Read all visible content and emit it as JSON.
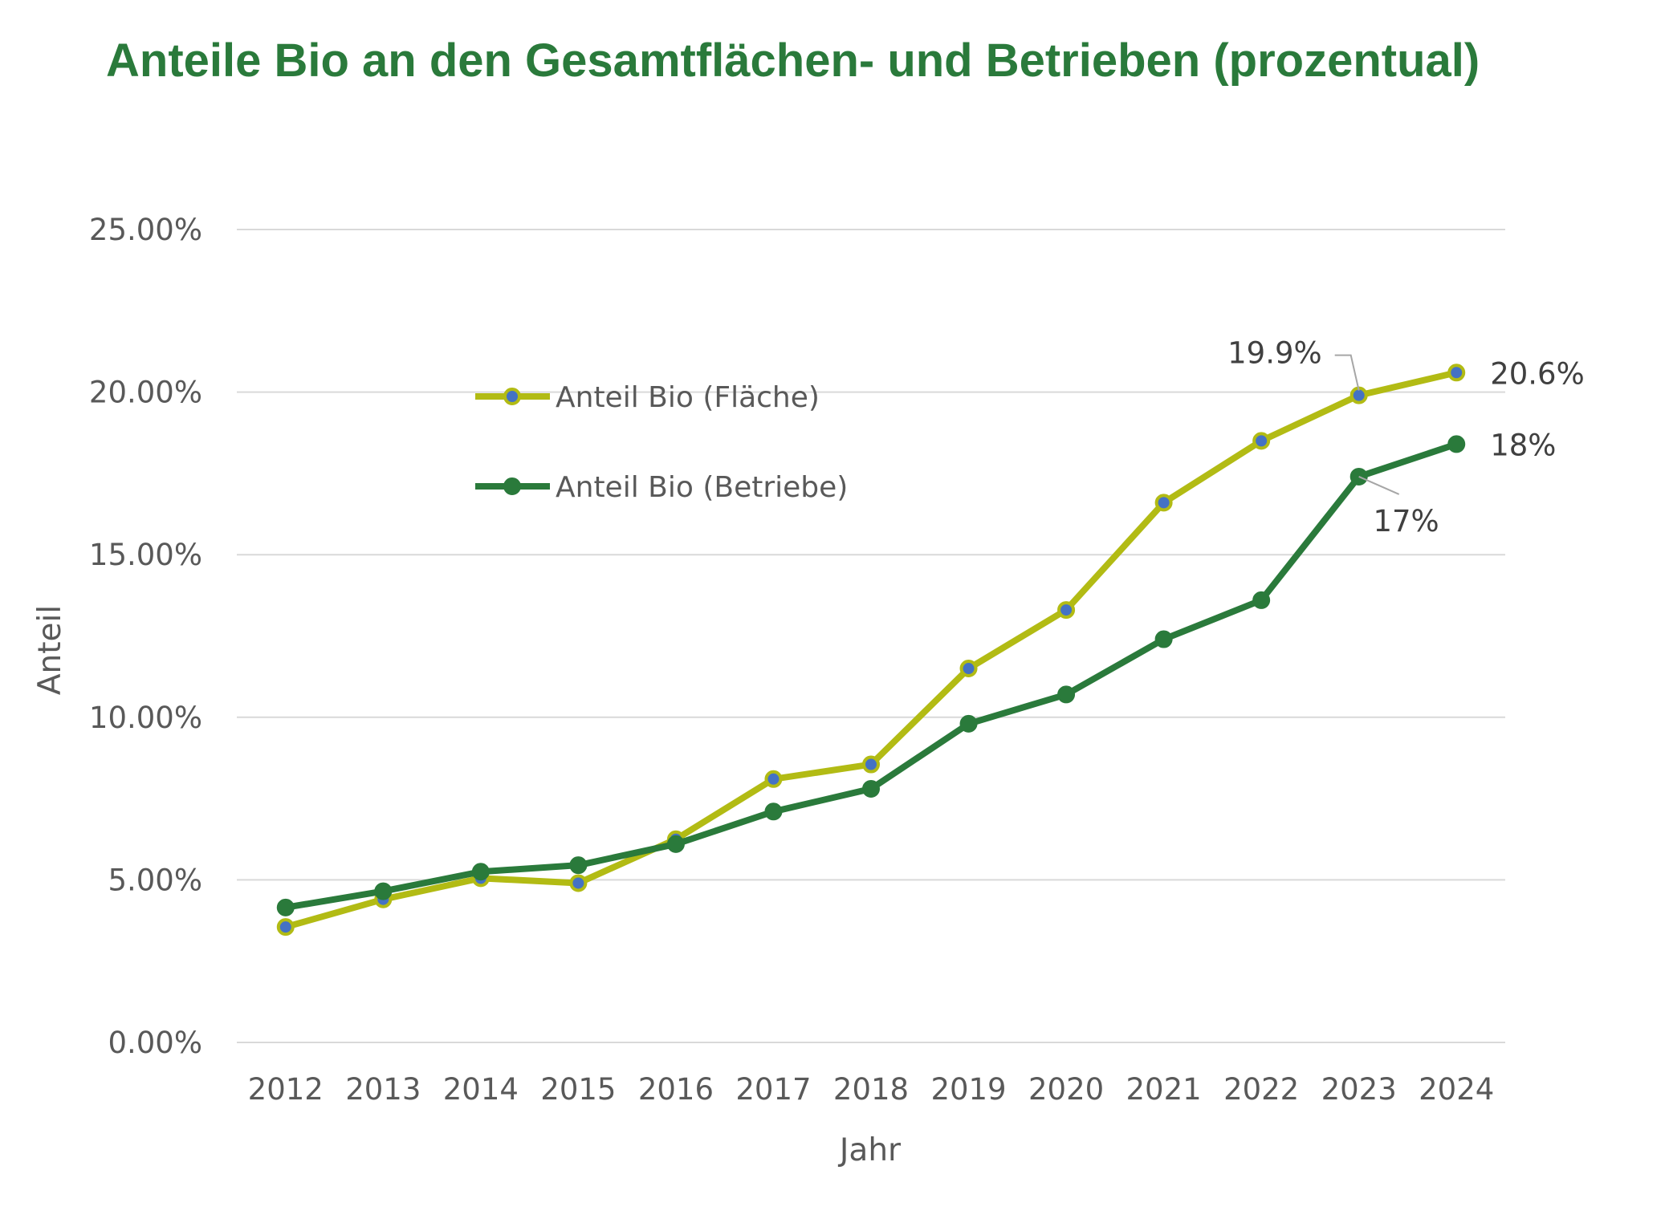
{
  "chart_data": {
    "type": "line",
    "title": "Anteile Bio an den Gesamtflächen- und Betrieben (prozentual)",
    "xlabel": "Jahr",
    "ylabel": "Anteil",
    "categories": [
      "2012",
      "2013",
      "2014",
      "2015",
      "2016",
      "2017",
      "2018",
      "2019",
      "2020",
      "2021",
      "2022",
      "2023",
      "2024"
    ],
    "ylim": [
      0,
      25
    ],
    "yticks": [
      "0.00%",
      "5.00%",
      "10.00%",
      "15.00%",
      "20.00%",
      "25.00%"
    ],
    "grid": true,
    "legend_position": "top-left",
    "series": [
      {
        "name": "Anteil Bio (Fläche)",
        "color": "#b2bb14",
        "marker_color": "#4472c4",
        "values": [
          3.55,
          4.4,
          5.05,
          4.9,
          6.25,
          8.1,
          8.55,
          11.5,
          13.3,
          16.6,
          18.5,
          19.9,
          20.6
        ]
      },
      {
        "name": "Anteil Bio (Betriebe)",
        "color": "#2a7a3b",
        "marker_color": "#2a7a3b",
        "values": [
          4.15,
          4.65,
          5.25,
          5.45,
          6.1,
          7.1,
          7.8,
          9.8,
          10.7,
          12.4,
          13.6,
          17.4,
          18.4
        ]
      }
    ],
    "annotations": [
      {
        "series": 0,
        "index": 11,
        "text": "19.9%"
      },
      {
        "series": 0,
        "index": 12,
        "text": "20.6%"
      },
      {
        "series": 1,
        "index": 11,
        "text": "17%"
      },
      {
        "series": 1,
        "index": 12,
        "text": "18%"
      }
    ]
  }
}
